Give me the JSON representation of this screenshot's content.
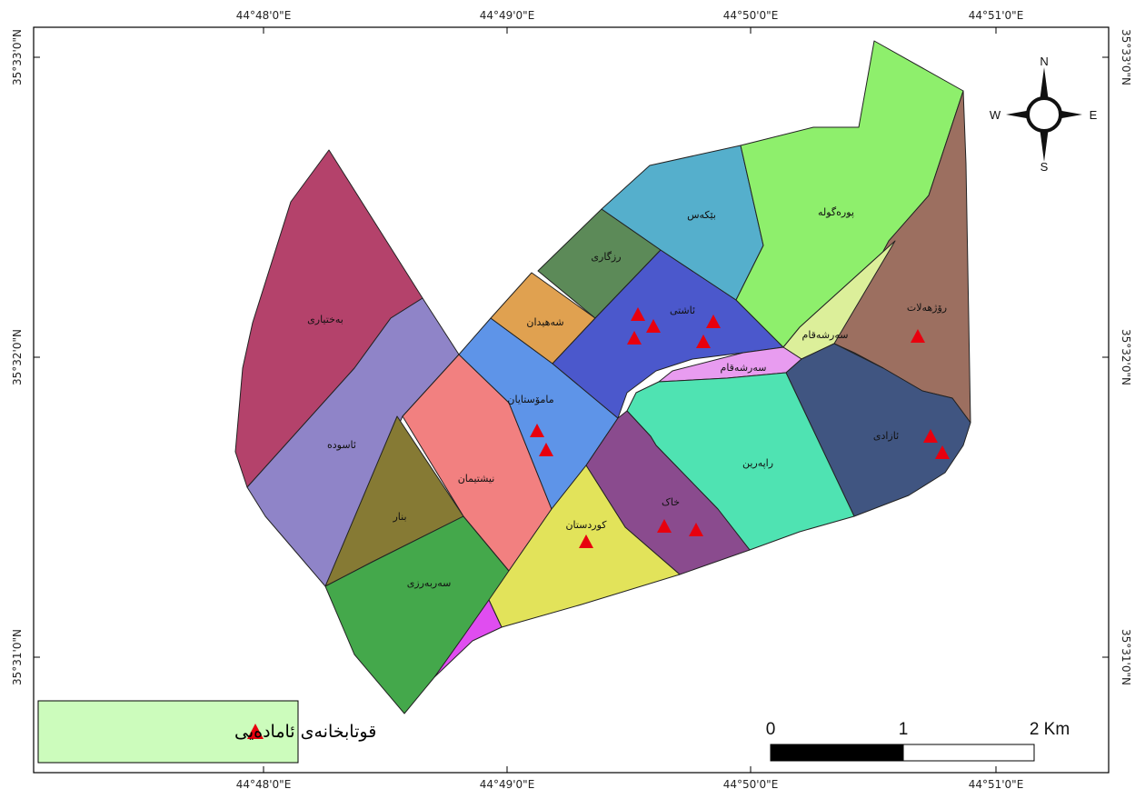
{
  "coordinates": {
    "longitude_labels": [
      "44°48'0\"E",
      "44°49'0\"E",
      "44°50'0\"E",
      "44°51'0\"E"
    ],
    "latitude_labels": [
      "35°33'0\"N",
      "35°32'0\"N",
      "35°31'0\"N"
    ]
  },
  "districts": [
    {
      "id": "bakhtiari",
      "name": "بەختیاری",
      "color": "#b4426b"
    },
    {
      "id": "asuda",
      "name": "ئاسودە",
      "color": "#8f84c8"
    },
    {
      "id": "binar",
      "name": "بنار",
      "color": "#867a34"
    },
    {
      "id": "sarbarzi",
      "name": "سەربەرزی",
      "color": "#44a84b"
    },
    {
      "id": "nishtiman",
      "name": "نیشتیمان",
      "color": "#f28080"
    },
    {
      "id": "mamostayan",
      "name": "مامۆستایان",
      "color": "#5e94e8"
    },
    {
      "id": "shahidan",
      "name": "شەهیدان",
      "color": "#e0a150"
    },
    {
      "id": "rizgari",
      "name": "رزگاری",
      "color": "#5c8a58"
    },
    {
      "id": "ashti",
      "name": "ئاشتی",
      "color": "#4b58cc"
    },
    {
      "id": "bekas",
      "name": "بێکەس",
      "color": "#55afcc"
    },
    {
      "id": "poragula",
      "name": "پورەگولە",
      "color": "#8eef6c"
    },
    {
      "id": "rojhalat",
      "name": "رۆژهەلات",
      "color": "#9c6f60"
    },
    {
      "id": "sarshaqam_upper",
      "name": "سەرشەقام",
      "color": "#dcef9a"
    },
    {
      "id": "sarshaqam_lower",
      "name": "سەرشەقام",
      "color": "#e89cf0"
    },
    {
      "id": "azadi",
      "name": "ئازادی",
      "color": "#405581"
    },
    {
      "id": "raparin",
      "name": "راپەرین",
      "color": "#4fe3b2"
    },
    {
      "id": "khak",
      "name": "خاک",
      "color": "#8a4b8e"
    },
    {
      "id": "kurdistan",
      "name": "کوردستان",
      "color": "#e2e35a"
    },
    {
      "id": "unnamed_sliver",
      "name": "",
      "color": "#e04df0"
    }
  ],
  "schools": {
    "symbol": "triangle",
    "color": "#e8000e",
    "count": 12
  },
  "legend": {
    "label": "قوتابخانەی ئامادەیی",
    "background": "#ccfcbc"
  },
  "scale_bar": {
    "labels": [
      "0",
      "1",
      "2 Km"
    ]
  },
  "north_arrow": {
    "n": "N",
    "s": "S",
    "e": "E",
    "w": "W"
  }
}
